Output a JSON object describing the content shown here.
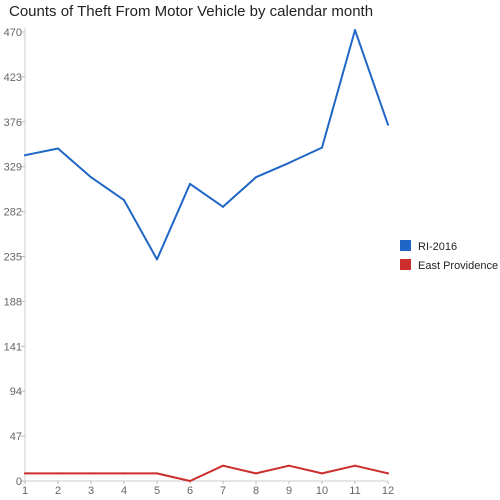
{
  "chart_data": {
    "type": "line",
    "title": "Counts of Theft From Motor Vehicle by calendar month",
    "xlabel": "",
    "ylabel": "",
    "categories": [
      "1",
      "2",
      "3",
      "4",
      "5",
      "6",
      "7",
      "8",
      "9",
      "10",
      "11",
      "12"
    ],
    "ylim": [
      0,
      470
    ],
    "yticks": [
      0,
      47,
      94,
      141,
      188,
      235,
      282,
      329,
      376,
      423,
      470
    ],
    "grid": false,
    "legend_position": "right",
    "series": [
      {
        "name": "RI-2016",
        "color": "#1f66c6",
        "values": [
          341,
          348,
          318,
          294,
          232,
          311,
          287,
          318,
          333,
          349,
          472,
          373
        ]
      },
      {
        "name": "East Providence",
        "color": "#cc2d2d",
        "values": [
          8,
          8,
          8,
          8,
          8,
          0,
          16,
          8,
          16,
          8,
          16,
          8
        ]
      }
    ]
  }
}
